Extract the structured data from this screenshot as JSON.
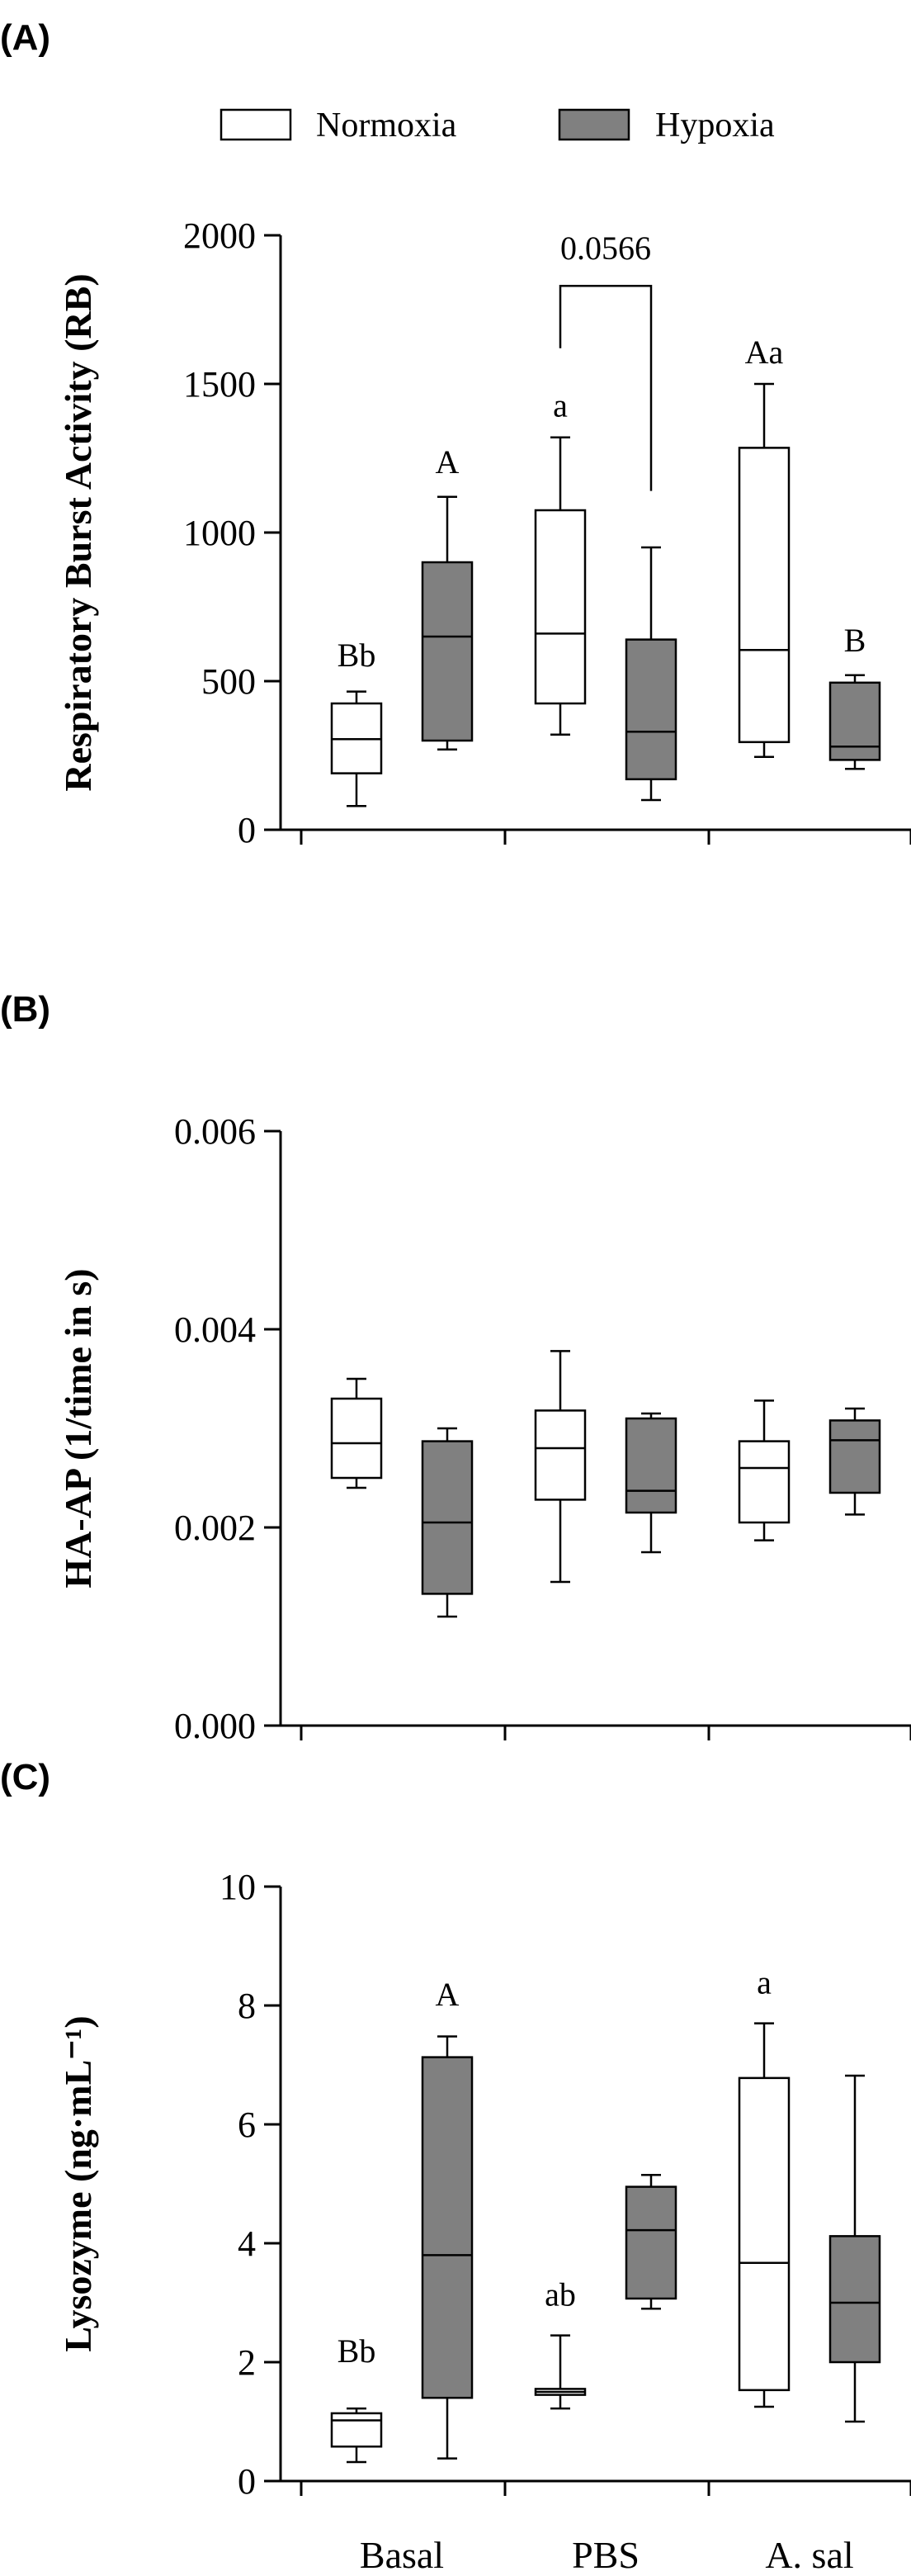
{
  "legend": [
    {
      "label": "Normoxia",
      "color": "#ffffff"
    },
    {
      "label": "Hypoxia",
      "color": "#808080"
    }
  ],
  "categories": [
    "Basal",
    "PBS",
    "A. sal"
  ],
  "chart_data": [
    {
      "type": "box",
      "panel": "(A)",
      "ylabel": "Respiratory Burst Activity (RB)",
      "ylim": [
        0,
        2000
      ],
      "yticks": [
        "0",
        "500",
        "1000",
        "1500",
        "2000"
      ],
      "categories": [
        "Basal",
        "PBS",
        "A. sal"
      ],
      "series": [
        {
          "name": "Normoxia",
          "color": "#ffffff",
          "boxes": [
            {
              "min": 80,
              "q1": 190,
              "median": 305,
              "q3": 425,
              "max": 465
            },
            {
              "min": 320,
              "q1": 425,
              "median": 660,
              "q3": 1075,
              "max": 1320
            },
            {
              "min": 245,
              "q1": 295,
              "median": 605,
              "q3": 1285,
              "max": 1500
            }
          ]
        },
        {
          "name": "Hypoxia",
          "color": "#808080",
          "boxes": [
            {
              "min": 270,
              "q1": 300,
              "median": 650,
              "q3": 900,
              "max": 1120
            },
            {
              "min": 100,
              "q1": 170,
              "median": 330,
              "q3": 640,
              "max": 950
            },
            {
              "min": 205,
              "q1": 235,
              "median": 280,
              "q3": 495,
              "max": 520
            }
          ]
        }
      ],
      "annotations": [
        {
          "text": "Bb",
          "category": 0,
          "series": 0,
          "y": 550
        },
        {
          "text": "A",
          "category": 0,
          "series": 1,
          "y": 1200
        },
        {
          "text": "a",
          "category": 1,
          "series": 0,
          "y": 1390
        },
        {
          "text": "Aa",
          "category": 2,
          "series": 0,
          "y": 1570
        },
        {
          "text": "B",
          "category": 2,
          "series": 1,
          "y": 600
        }
      ],
      "bracket": {
        "label": "0.0566",
        "category": 1,
        "top": 1830,
        "left_end": 1620,
        "right_end": 1140
      }
    },
    {
      "type": "box",
      "panel": "(B)",
      "ylabel": "HA-AP (1/time in s)",
      "ylim": [
        0,
        0.006
      ],
      "yticks": [
        "0.000",
        "0.002",
        "0.004",
        "0.006"
      ],
      "categories": [
        "Basal",
        "PBS",
        "A. sal"
      ],
      "series": [
        {
          "name": "Normoxia",
          "color": "#ffffff",
          "boxes": [
            {
              "min": 0.0024,
              "q1": 0.0025,
              "median": 0.00285,
              "q3": 0.0033,
              "max": 0.0035
            },
            {
              "min": 0.00145,
              "q1": 0.00228,
              "median": 0.0028,
              "q3": 0.00318,
              "max": 0.00378
            },
            {
              "min": 0.00187,
              "q1": 0.00205,
              "median": 0.0026,
              "q3": 0.00287,
              "max": 0.00328
            }
          ]
        },
        {
          "name": "Hypoxia",
          "color": "#808080",
          "boxes": [
            {
              "min": 0.0011,
              "q1": 0.00133,
              "median": 0.00205,
              "q3": 0.00287,
              "max": 0.003
            },
            {
              "min": 0.00175,
              "q1": 0.00215,
              "median": 0.00237,
              "q3": 0.0031,
              "max": 0.00315
            },
            {
              "min": 0.00213,
              "q1": 0.00235,
              "median": 0.00288,
              "q3": 0.00308,
              "max": 0.0032
            }
          ]
        }
      ],
      "annotations": []
    },
    {
      "type": "box",
      "panel": "(C)",
      "ylabel": "Lysozyme (ng·mL⁻¹)",
      "ylim": [
        0,
        10
      ],
      "yticks": [
        "0",
        "2",
        "4",
        "6",
        "8",
        "10"
      ],
      "categories": [
        "Basal",
        "PBS",
        "A. sal"
      ],
      "series": [
        {
          "name": "Normoxia",
          "color": "#ffffff",
          "boxes": [
            {
              "min": 0.32,
              "q1": 0.58,
              "median": 1.02,
              "q3": 1.14,
              "max": 1.22
            },
            {
              "min": 1.22,
              "q1": 1.45,
              "median": 1.5,
              "q3": 1.55,
              "max": 2.45
            },
            {
              "min": 1.25,
              "q1": 1.53,
              "median": 3.67,
              "q3": 6.78,
              "max": 7.7
            }
          ]
        },
        {
          "name": "Hypoxia",
          "color": "#808080",
          "boxes": [
            {
              "min": 0.38,
              "q1": 1.4,
              "median": 3.8,
              "q3": 7.13,
              "max": 7.48
            },
            {
              "min": 2.9,
              "q1": 3.07,
              "median": 4.22,
              "q3": 4.95,
              "max": 5.15
            },
            {
              "min": 1.0,
              "q1": 2.0,
              "median": 3.0,
              "q3": 4.12,
              "max": 6.82
            }
          ]
        }
      ],
      "annotations": [
        {
          "text": "Bb",
          "category": 0,
          "series": 0,
          "y": 2.0
        },
        {
          "text": "A",
          "category": 0,
          "series": 1,
          "y": 8.0
        },
        {
          "text": "ab",
          "category": 1,
          "series": 0,
          "y": 2.95
        },
        {
          "text": "a",
          "category": 2,
          "series": 0,
          "y": 8.2
        }
      ]
    }
  ]
}
